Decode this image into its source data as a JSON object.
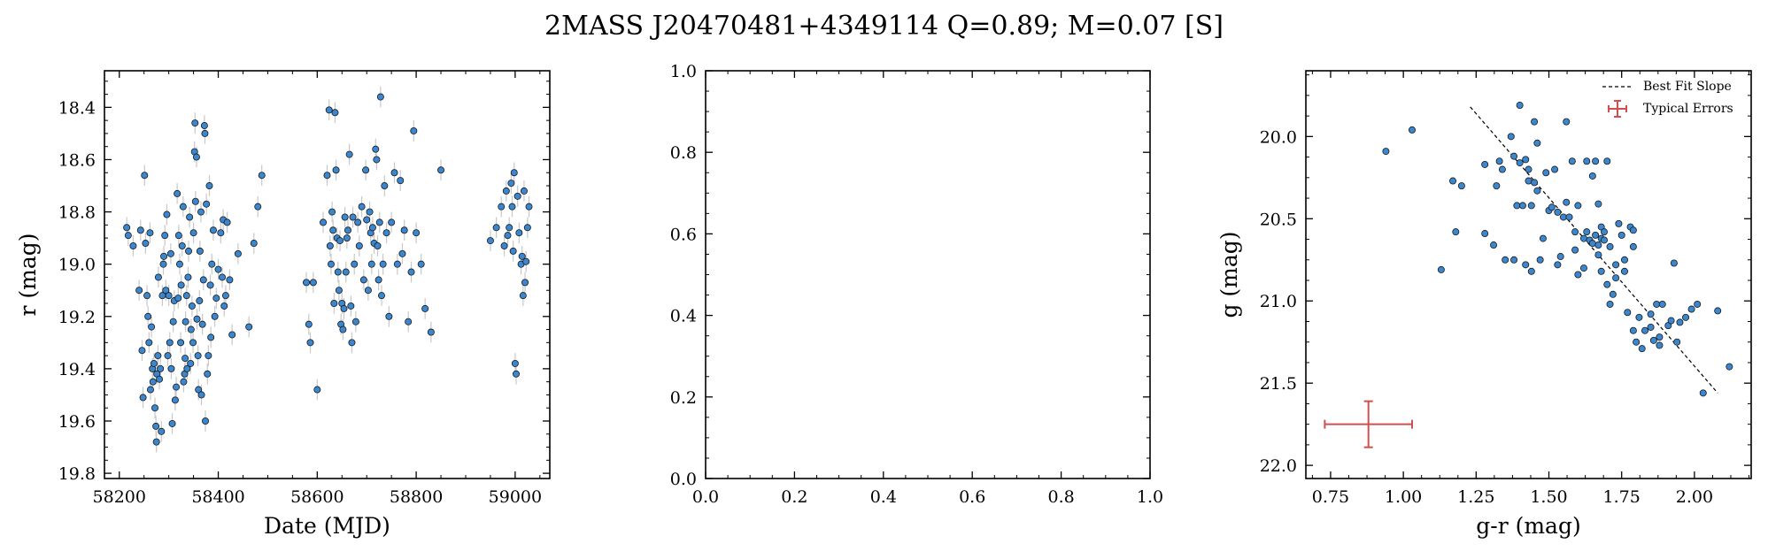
{
  "figure": {
    "title": "2MASS J20470481+4349114  Q=0.89; M=0.07 [S]",
    "point_color": "#3a87d0",
    "point_edge": "#1a1a1a",
    "error_color": "#c8c8c8",
    "typical_error_color": "#d05050"
  },
  "chart_data": [
    {
      "type": "scatter",
      "name": "light-curve",
      "xlabel": "Date (MJD)",
      "ylabel": "r (mag)",
      "xlim": [
        58170,
        59070
      ],
      "ylim": [
        19.82,
        18.26
      ],
      "y_inverted": true,
      "xticks": [
        58200,
        58400,
        58600,
        58800,
        59000
      ],
      "xtick_labels": [
        "58200",
        "58400",
        "58600",
        "58800",
        "59000"
      ],
      "yticks": [
        18.4,
        18.6,
        18.8,
        19.0,
        19.2,
        19.4,
        19.6,
        19.8
      ],
      "ytick_labels": [
        "18.4",
        "18.6",
        "18.8",
        "19.0",
        "19.2",
        "19.4",
        "19.6",
        "19.8"
      ],
      "y_error": 0.04,
      "points": [
        [
          58215,
          18.86
        ],
        [
          58218,
          18.89
        ],
        [
          58228,
          18.93
        ],
        [
          58240,
          19.1
        ],
        [
          58243,
          18.87
        ],
        [
          58246,
          19.33
        ],
        [
          58248,
          19.51
        ],
        [
          58251,
          18.66
        ],
        [
          58253,
          18.92
        ],
        [
          58256,
          19.12
        ],
        [
          58258,
          19.2
        ],
        [
          58260,
          19.3
        ],
        [
          58262,
          18.88
        ],
        [
          58263,
          19.48
        ],
        [
          58265,
          19.24
        ],
        [
          58267,
          19.4
        ],
        [
          58268,
          19.45
        ],
        [
          58270,
          19.38
        ],
        [
          58272,
          19.55
        ],
        [
          58274,
          19.62
        ],
        [
          58275,
          19.68
        ],
        [
          58276,
          19.42
        ],
        [
          58278,
          19.35
        ],
        [
          58279,
          19.05
        ],
        [
          58281,
          19.44
        ],
        [
          58283,
          19.4
        ],
        [
          58285,
          19.64
        ],
        [
          58287,
          19.12
        ],
        [
          58289,
          19.0
        ],
        [
          58290,
          18.97
        ],
        [
          58292,
          18.89
        ],
        [
          58294,
          19.1
        ],
        [
          58296,
          18.81
        ],
        [
          58298,
          19.35
        ],
        [
          58300,
          19.12
        ],
        [
          58302,
          19.3
        ],
        [
          58304,
          18.96
        ],
        [
          58305,
          19.4
        ],
        [
          58307,
          19.61
        ],
        [
          58309,
          19.22
        ],
        [
          58311,
          19.14
        ],
        [
          58313,
          19.52
        ],
        [
          58315,
          19.47
        ],
        [
          58317,
          18.73
        ],
        [
          58319,
          19.13
        ],
        [
          58320,
          18.89
        ],
        [
          58322,
          19.0
        ],
        [
          58324,
          19.3
        ],
        [
          58325,
          19.08
        ],
        [
          58327,
          18.93
        ],
        [
          58329,
          18.78
        ],
        [
          58330,
          19.45
        ],
        [
          58332,
          19.42
        ],
        [
          58333,
          19.36
        ],
        [
          58334,
          19.22
        ],
        [
          58336,
          19.12
        ],
        [
          58337,
          19.4
        ],
        [
          58339,
          19.05
        ],
        [
          58340,
          18.95
        ],
        [
          58342,
          18.82
        ],
        [
          58344,
          19.38
        ],
        [
          58345,
          19.25
        ],
        [
          58347,
          19.16
        ],
        [
          58349,
          19.3
        ],
        [
          58350,
          18.88
        ],
        [
          58352,
          18.57
        ],
        [
          58353,
          18.46
        ],
        [
          58354,
          18.76
        ],
        [
          58356,
          18.59
        ],
        [
          58357,
          19.21
        ],
        [
          58359,
          19.35
        ],
        [
          58360,
          19.48
        ],
        [
          58362,
          19.14
        ],
        [
          58363,
          18.95
        ],
        [
          58365,
          18.8
        ],
        [
          58366,
          19.5
        ],
        [
          58368,
          19.23
        ],
        [
          58370,
          19.06
        ],
        [
          58372,
          18.47
        ],
        [
          58373,
          18.5
        ],
        [
          58374,
          19.6
        ],
        [
          58376,
          18.77
        ],
        [
          58378,
          19.42
        ],
        [
          58380,
          19.35
        ],
        [
          58382,
          18.7
        ],
        [
          58384,
          19.08
        ],
        [
          58385,
          19.28
        ],
        [
          58387,
          19.0
        ],
        [
          58390,
          18.87
        ],
        [
          58393,
          19.2
        ],
        [
          58396,
          19.13
        ],
        [
          58400,
          19.02
        ],
        [
          58405,
          18.88
        ],
        [
          58408,
          19.05
        ],
        [
          58410,
          18.83
        ],
        [
          58412,
          19.16
        ],
        [
          58415,
          19.12
        ],
        [
          58418,
          18.84
        ],
        [
          58423,
          19.06
        ],
        [
          58428,
          19.27
        ],
        [
          58440,
          18.96
        ],
        [
          58462,
          19.24
        ],
        [
          58472,
          18.92
        ],
        [
          58480,
          18.78
        ],
        [
          58488,
          18.66
        ],
        [
          58578,
          19.07
        ],
        [
          58583,
          19.23
        ],
        [
          58586,
          19.3
        ],
        [
          58592,
          19.07
        ],
        [
          58600,
          19.48
        ],
        [
          58612,
          18.84
        ],
        [
          58620,
          18.66
        ],
        [
          58624,
          18.41
        ],
        [
          58626,
          18.93
        ],
        [
          58628,
          19.0
        ],
        [
          58630,
          18.8
        ],
        [
          58632,
          18.87
        ],
        [
          58634,
          19.15
        ],
        [
          58636,
          18.42
        ],
        [
          58638,
          18.64
        ],
        [
          58640,
          18.9
        ],
        [
          58642,
          19.03
        ],
        [
          58644,
          19.1
        ],
        [
          58646,
          18.91
        ],
        [
          58648,
          19.23
        ],
        [
          58650,
          19.15
        ],
        [
          58652,
          19.25
        ],
        [
          58654,
          19.17
        ],
        [
          58656,
          18.82
        ],
        [
          58658,
          19.03
        ],
        [
          58660,
          18.9
        ],
        [
          58662,
          18.87
        ],
        [
          58665,
          18.58
        ],
        [
          58668,
          19.16
        ],
        [
          58670,
          19.3
        ],
        [
          58672,
          18.82
        ],
        [
          58675,
          19.0
        ],
        [
          58678,
          19.22
        ],
        [
          58682,
          18.84
        ],
        [
          58685,
          18.93
        ],
        [
          58690,
          18.78
        ],
        [
          58694,
          19.06
        ],
        [
          58698,
          18.64
        ],
        [
          58700,
          18.83
        ],
        [
          58703,
          19.1
        ],
        [
          58706,
          18.8
        ],
        [
          58708,
          18.88
        ],
        [
          58710,
          19.0
        ],
        [
          58712,
          18.86
        ],
        [
          58715,
          18.92
        ],
        [
          58718,
          18.56
        ],
        [
          58720,
          18.6
        ],
        [
          58722,
          18.93
        ],
        [
          58724,
          19.06
        ],
        [
          58726,
          18.84
        ],
        [
          58728,
          18.36
        ],
        [
          58730,
          19.12
        ],
        [
          58733,
          19.0
        ],
        [
          58736,
          18.7
        ],
        [
          58740,
          18.88
        ],
        [
          58745,
          19.2
        ],
        [
          58750,
          18.84
        ],
        [
          58756,
          18.65
        ],
        [
          58762,
          19.0
        ],
        [
          58768,
          18.68
        ],
        [
          58772,
          18.96
        ],
        [
          58776,
          18.87
        ],
        [
          58784,
          19.22
        ],
        [
          58790,
          19.03
        ],
        [
          58795,
          18.49
        ],
        [
          58800,
          18.88
        ],
        [
          58810,
          19.0
        ],
        [
          58818,
          19.17
        ],
        [
          58830,
          19.26
        ],
        [
          58850,
          18.64
        ],
        [
          58950,
          18.91
        ],
        [
          58962,
          18.86
        ],
        [
          58972,
          18.78
        ],
        [
          58978,
          18.93
        ],
        [
          58982,
          18.72
        ],
        [
          58985,
          18.89
        ],
        [
          58988,
          18.86
        ],
        [
          58992,
          18.69
        ],
        [
          58994,
          18.78
        ],
        [
          58996,
          18.95
        ],
        [
          58998,
          18.65
        ],
        [
          59000,
          19.38
        ],
        [
          59002,
          19.42
        ],
        [
          59005,
          18.74
        ],
        [
          59008,
          18.88
        ],
        [
          59012,
          19.0
        ],
        [
          59014,
          18.97
        ],
        [
          59016,
          19.12
        ],
        [
          59018,
          18.72
        ],
        [
          59020,
          19.07
        ],
        [
          59022,
          18.99
        ],
        [
          59025,
          18.86
        ],
        [
          59028,
          18.78
        ]
      ]
    },
    {
      "type": "scatter",
      "name": "empty-panel",
      "xlabel": "",
      "ylabel": "",
      "xlim": [
        0,
        1
      ],
      "ylim": [
        0,
        1
      ],
      "xticks": [
        0,
        0.2,
        0.4,
        0.6,
        0.8,
        1.0
      ],
      "xtick_labels": [
        "0.0",
        "0.2",
        "0.4",
        "0.6",
        "0.8",
        "1.0"
      ],
      "yticks": [
        0,
        0.2,
        0.4,
        0.6,
        0.8,
        1.0
      ],
      "ytick_labels": [
        "0.0",
        "0.2",
        "0.4",
        "0.6",
        "0.8",
        "1.0"
      ],
      "points": []
    },
    {
      "type": "scatter",
      "name": "color-magnitude",
      "xlabel": "g-r (mag)",
      "ylabel": "g (mag)",
      "xlim": [
        0.665,
        2.195
      ],
      "ylim": [
        22.08,
        19.6
      ],
      "y_inverted": true,
      "xticks": [
        0.75,
        1.0,
        1.25,
        1.5,
        1.75,
        2.0
      ],
      "xtick_labels": [
        "0.75",
        "1.00",
        "1.25",
        "1.50",
        "1.75",
        "2.00"
      ],
      "yticks": [
        20.0,
        20.5,
        21.0,
        21.5,
        22.0
      ],
      "ytick_labels": [
        "20.0",
        "20.5",
        "21.0",
        "21.5",
        "22.0"
      ],
      "legend": {
        "placement": "top-right",
        "entries": [
          "Best Fit Slope",
          "Typical Errors"
        ]
      },
      "best_fit": {
        "x": [
          1.23,
          2.08
        ],
        "y": [
          19.82,
          21.56
        ]
      },
      "typical_error": {
        "x": 0.88,
        "y": 21.75,
        "xerr": 0.15,
        "yerr": 0.14
      },
      "points": [
        [
          0.94,
          20.09
        ],
        [
          1.03,
          19.96
        ],
        [
          1.13,
          20.81
        ],
        [
          1.17,
          20.27
        ],
        [
          1.18,
          20.58
        ],
        [
          1.2,
          20.3
        ],
        [
          1.28,
          20.17
        ],
        [
          1.28,
          20.59
        ],
        [
          1.31,
          20.66
        ],
        [
          1.32,
          20.3
        ],
        [
          1.33,
          20.15
        ],
        [
          1.34,
          20.2
        ],
        [
          1.35,
          20.75
        ],
        [
          1.37,
          20.0
        ],
        [
          1.38,
          20.12
        ],
        [
          1.38,
          20.75
        ],
        [
          1.39,
          20.42
        ],
        [
          1.4,
          19.81
        ],
        [
          1.4,
          20.16
        ],
        [
          1.41,
          20.42
        ],
        [
          1.42,
          20.14
        ],
        [
          1.42,
          20.78
        ],
        [
          1.43,
          20.2
        ],
        [
          1.43,
          20.27
        ],
        [
          1.44,
          20.42
        ],
        [
          1.44,
          20.82
        ],
        [
          1.45,
          19.91
        ],
        [
          1.45,
          20.28
        ],
        [
          1.46,
          20.04
        ],
        [
          1.46,
          20.33
        ],
        [
          1.47,
          20.75
        ],
        [
          1.48,
          20.62
        ],
        [
          1.49,
          20.22
        ],
        [
          1.5,
          20.45
        ],
        [
          1.51,
          20.43
        ],
        [
          1.52,
          20.2
        ],
        [
          1.53,
          20.46
        ],
        [
          1.53,
          20.78
        ],
        [
          1.54,
          20.73
        ],
        [
          1.55,
          20.49
        ],
        [
          1.56,
          19.91
        ],
        [
          1.56,
          20.4
        ],
        [
          1.57,
          20.49
        ],
        [
          1.58,
          20.15
        ],
        [
          1.59,
          20.58
        ],
        [
          1.59,
          20.69
        ],
        [
          1.6,
          20.42
        ],
        [
          1.6,
          20.84
        ],
        [
          1.62,
          20.62
        ],
        [
          1.62,
          20.8
        ],
        [
          1.63,
          20.15
        ],
        [
          1.63,
          20.58
        ],
        [
          1.64,
          20.63
        ],
        [
          1.65,
          20.24
        ],
        [
          1.65,
          20.65
        ],
        [
          1.66,
          20.15
        ],
        [
          1.66,
          20.6
        ],
        [
          1.67,
          20.41
        ],
        [
          1.67,
          20.66
        ],
        [
          1.67,
          20.72
        ],
        [
          1.68,
          20.55
        ],
        [
          1.68,
          20.62
        ],
        [
          1.68,
          20.82
        ],
        [
          1.69,
          20.58
        ],
        [
          1.69,
          20.63
        ],
        [
          1.7,
          20.15
        ],
        [
          1.7,
          20.9
        ],
        [
          1.71,
          20.67
        ],
        [
          1.71,
          21.02
        ],
        [
          1.72,
          20.96
        ],
        [
          1.73,
          20.78
        ],
        [
          1.73,
          20.86
        ],
        [
          1.74,
          20.53
        ],
        [
          1.75,
          20.6
        ],
        [
          1.76,
          20.82
        ],
        [
          1.76,
          20.75
        ],
        [
          1.77,
          21.07
        ],
        [
          1.78,
          20.55
        ],
        [
          1.79,
          20.57
        ],
        [
          1.79,
          20.67
        ],
        [
          1.79,
          21.18
        ],
        [
          1.8,
          21.25
        ],
        [
          1.81,
          21.1
        ],
        [
          1.82,
          21.29
        ],
        [
          1.83,
          21.18
        ],
        [
          1.85,
          21.08
        ],
        [
          1.85,
          21.16
        ],
        [
          1.86,
          21.24
        ],
        [
          1.87,
          21.02
        ],
        [
          1.88,
          21.27
        ],
        [
          1.88,
          21.22
        ],
        [
          1.89,
          21.02
        ],
        [
          1.91,
          21.15
        ],
        [
          1.92,
          21.12
        ],
        [
          1.93,
          20.77
        ],
        [
          1.94,
          21.25
        ],
        [
          1.95,
          21.13
        ],
        [
          1.97,
          21.1
        ],
        [
          1.99,
          21.05
        ],
        [
          2.01,
          21.02
        ],
        [
          2.03,
          21.56
        ],
        [
          2.08,
          21.06
        ],
        [
          2.12,
          21.4
        ]
      ]
    }
  ]
}
